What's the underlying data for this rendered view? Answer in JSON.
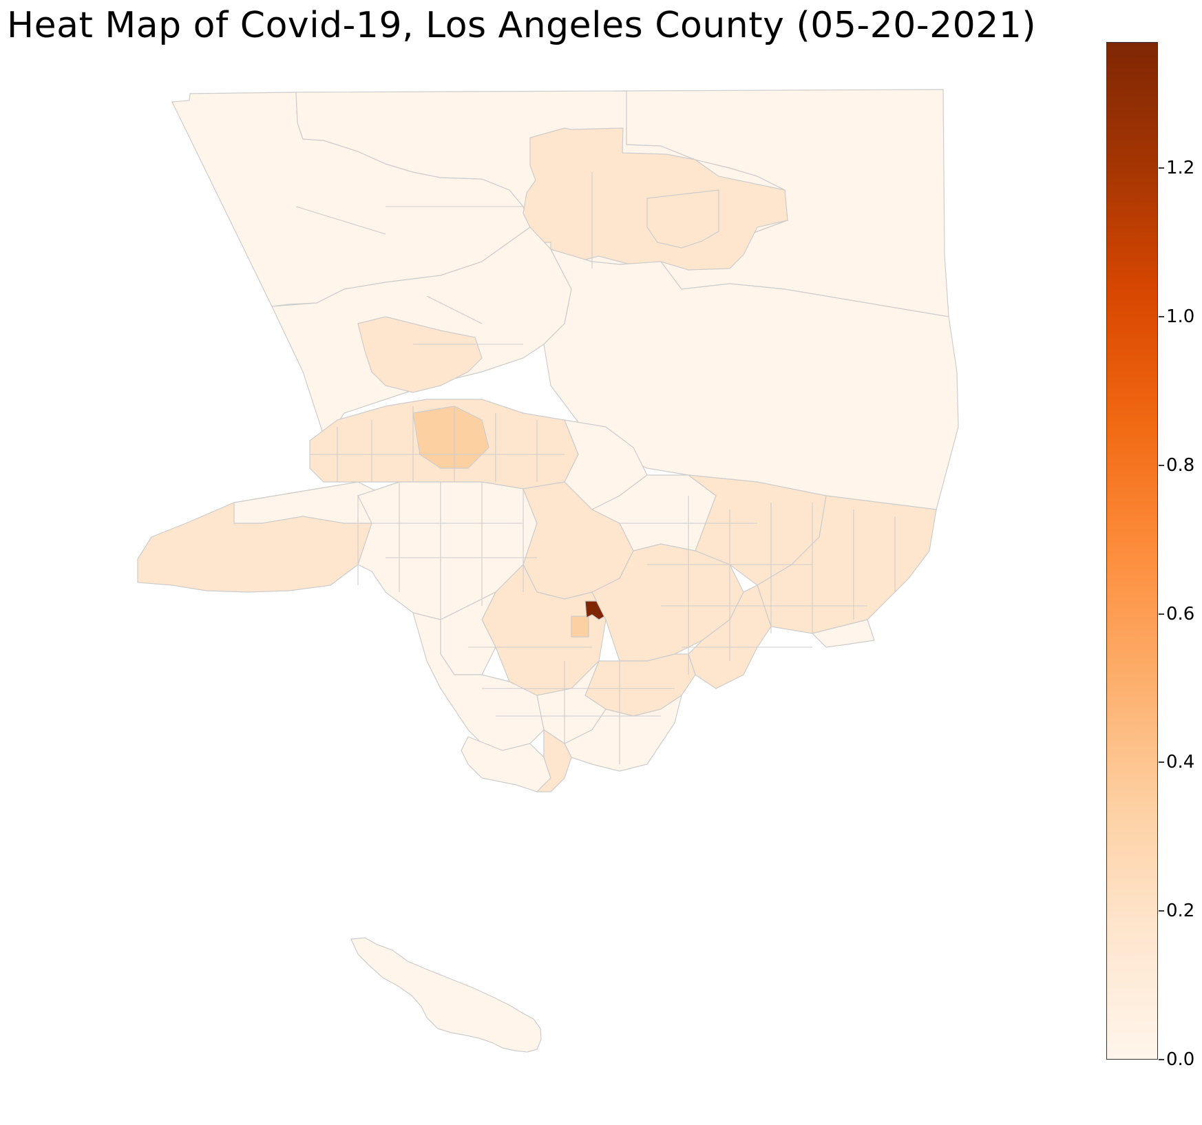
{
  "title": "Heat Map of Covid-19, Los Angeles County (05-20-2021)",
  "colorbar": {
    "min": 0.0,
    "max": 1.37,
    "colormap": "Oranges",
    "colors": [
      "#fff5eb",
      "#fee6ce",
      "#fdd0a2",
      "#fdae6b",
      "#fd8d3c",
      "#f16913",
      "#d94801",
      "#a63603",
      "#7f2704"
    ],
    "ticks": [
      {
        "value": 0.0,
        "label": "0.0"
      },
      {
        "value": 0.2,
        "label": "0.2"
      },
      {
        "value": 0.4,
        "label": "0.4"
      },
      {
        "value": 0.6,
        "label": "0.6"
      },
      {
        "value": 0.8,
        "label": "0.8"
      },
      {
        "value": 1.0,
        "label": "1.0"
      },
      {
        "value": 1.2,
        "label": "1.2"
      }
    ]
  },
  "map": {
    "border_color": "#cccccc",
    "highlight_value": 1.37,
    "secondary_value": 0.33
  }
}
